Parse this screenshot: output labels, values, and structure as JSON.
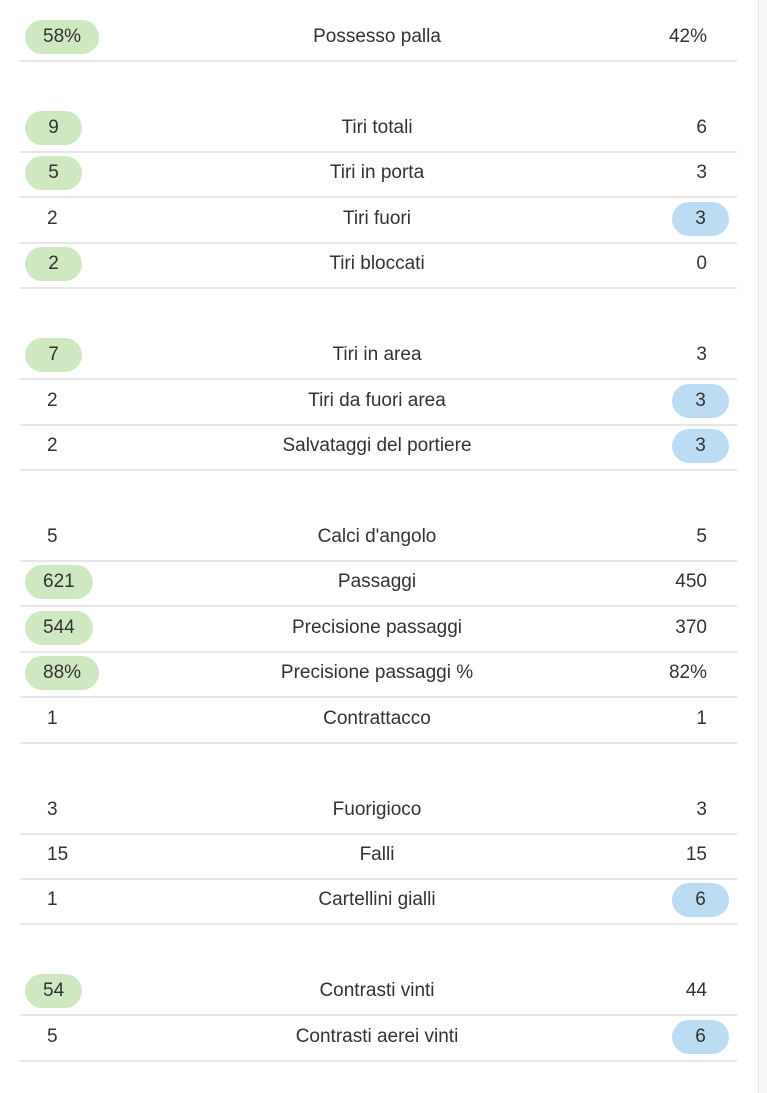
{
  "groups": [
    {
      "rows": [
        {
          "home": "58%",
          "label": "Possesso palla",
          "away": "42%",
          "highlight": "home"
        }
      ]
    },
    {
      "rows": [
        {
          "home": "9",
          "label": "Tiri totali",
          "away": "6",
          "highlight": "home"
        },
        {
          "home": "5",
          "label": "Tiri in porta",
          "away": "3",
          "highlight": "home"
        },
        {
          "home": "2",
          "label": "Tiri fuori",
          "away": "3",
          "highlight": "away"
        },
        {
          "home": "2",
          "label": "Tiri bloccati",
          "away": "0",
          "highlight": "home"
        }
      ]
    },
    {
      "rows": [
        {
          "home": "7",
          "label": "Tiri in area",
          "away": "3",
          "highlight": "home"
        },
        {
          "home": "2",
          "label": "Tiri da fuori area",
          "away": "3",
          "highlight": "away"
        },
        {
          "home": "2",
          "label": "Salvataggi del portiere",
          "away": "3",
          "highlight": "away"
        }
      ]
    },
    {
      "rows": [
        {
          "home": "5",
          "label": "Calci d'angolo",
          "away": "5",
          "highlight": null
        },
        {
          "home": "621",
          "label": "Passaggi",
          "away": "450",
          "highlight": "home"
        },
        {
          "home": "544",
          "label": "Precisione passaggi",
          "away": "370",
          "highlight": "home"
        },
        {
          "home": "88%",
          "label": "Precisione passaggi %",
          "away": "82%",
          "highlight": "home"
        },
        {
          "home": "1",
          "label": "Contrattacco",
          "away": "1",
          "highlight": null
        }
      ]
    },
    {
      "rows": [
        {
          "home": "3",
          "label": "Fuorigioco",
          "away": "3",
          "highlight": null
        },
        {
          "home": "15",
          "label": "Falli",
          "away": "15",
          "highlight": null
        },
        {
          "home": "1",
          "label": "Cartellini gialli",
          "away": "6",
          "highlight": "away"
        }
      ]
    },
    {
      "rows": [
        {
          "home": "54",
          "label": "Contrasti vinti",
          "away": "44",
          "highlight": "home"
        },
        {
          "home": "5",
          "label": "Contrasti aerei vinti",
          "away": "6",
          "highlight": "away"
        }
      ]
    }
  ]
}
